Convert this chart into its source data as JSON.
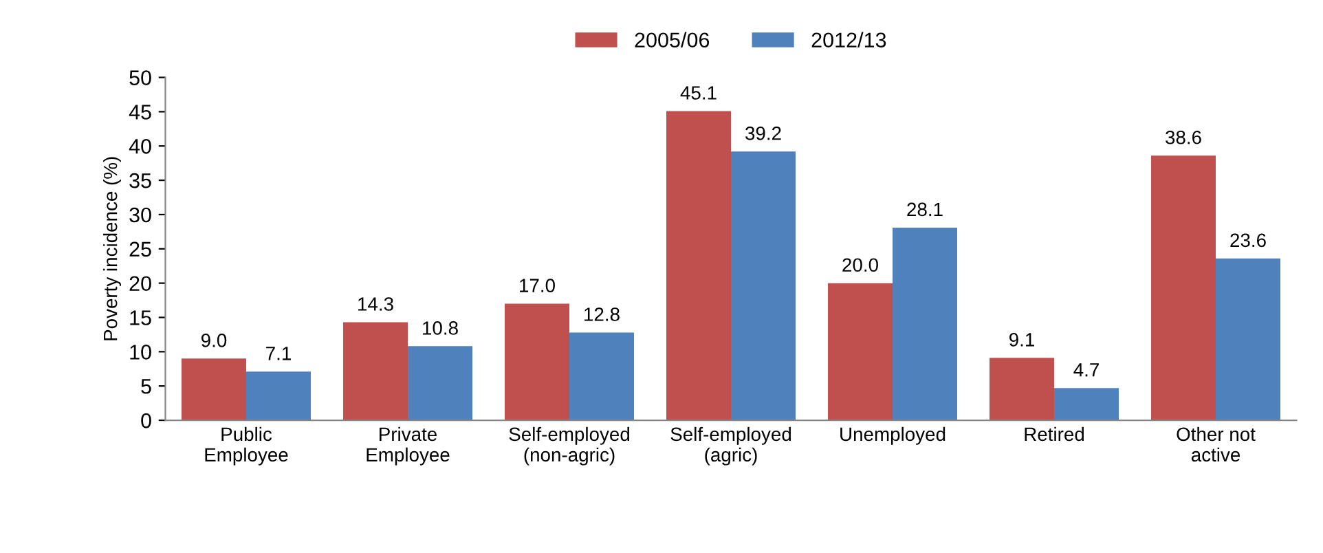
{
  "chart_data": {
    "type": "bar",
    "ylabel": "Poverty incidence (%)",
    "categories": [
      "Public\nEmployee",
      "Private\nEmployee",
      "Self-employed\n(non-agric)",
      "Self-employed\n(agric)",
      "Unemployed",
      "Retired",
      "Other not\nactive"
    ],
    "series": [
      {
        "name": "2005/06",
        "color": "#c0504d",
        "values": [
          9.0,
          14.3,
          17.0,
          45.1,
          20.0,
          9.1,
          38.6
        ],
        "value_labels": [
          "9.0",
          "14.3",
          "17.0",
          "45.1",
          "20.0",
          "9.1",
          "38.6"
        ]
      },
      {
        "name": "2012/13",
        "color": "#4f81bd",
        "values": [
          7.1,
          10.8,
          12.8,
          39.2,
          28.1,
          4.7,
          23.6
        ],
        "value_labels": [
          "7.1",
          "10.8",
          "12.8",
          "39.2",
          "28.1",
          "4.7",
          "23.6"
        ]
      }
    ],
    "ylim": [
      0,
      50
    ],
    "yticks": [
      0,
      5,
      10,
      15,
      20,
      25,
      30,
      35,
      40,
      45,
      50
    ],
    "grid": false,
    "legend": "top"
  }
}
